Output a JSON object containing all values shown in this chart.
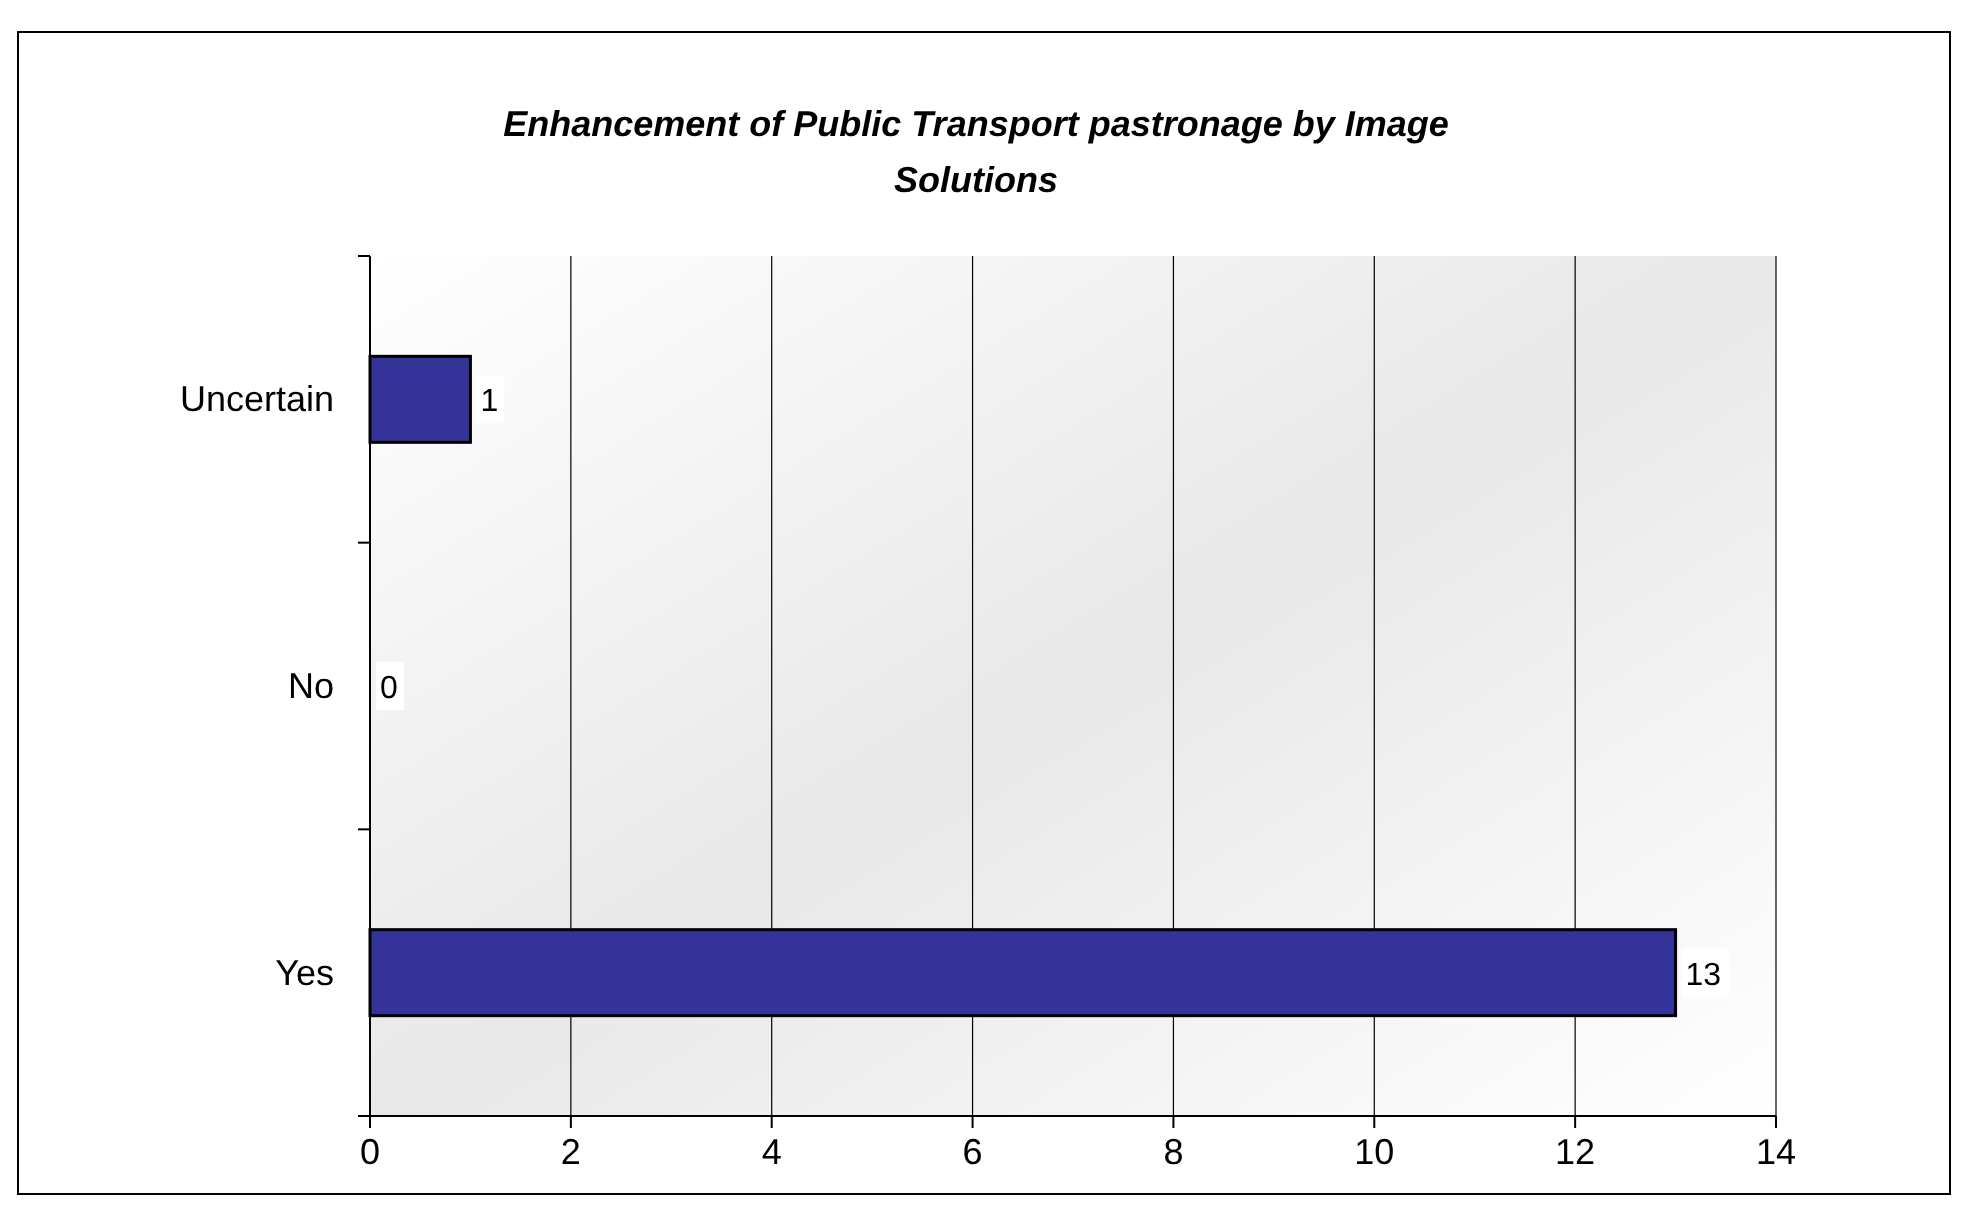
{
  "chart_data": {
    "type": "bar",
    "orientation": "horizontal",
    "title": "Enhancement of Public Transport pastronage by Image Solutions",
    "categories": [
      "Uncertain",
      "No",
      "Yes"
    ],
    "values": [
      1,
      0,
      13
    ],
    "color": "#333399",
    "xlim": [
      0,
      14
    ],
    "xticks": [
      0,
      2,
      4,
      6,
      8,
      10,
      12,
      14
    ],
    "grid": "x",
    "data_labels": true
  }
}
